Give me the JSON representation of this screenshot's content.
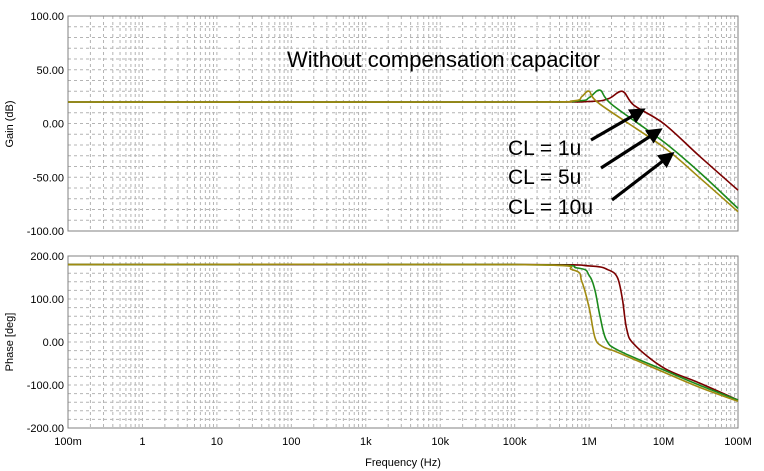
{
  "chart_data": [
    {
      "type": "line",
      "id": "gain",
      "xlabel": "Frequency (Hz)",
      "ylabel": "Gain (dB)",
      "xscale": "log",
      "xlim": [
        0.1,
        100000000
      ],
      "ylim": [
        -100,
        100
      ],
      "grid": true,
      "yticks": [
        {
          "v": 100,
          "label": "100.00"
        },
        {
          "v": 50,
          "label": "50.00"
        },
        {
          "v": 0,
          "label": "0.00"
        },
        {
          "v": -50,
          "label": "-50.00"
        },
        {
          "v": -100,
          "label": "-100.00"
        }
      ],
      "annotations": {
        "title": "Without compensation capacitor",
        "labels": [
          "CL = 1u",
          "CL = 5u",
          "CL = 10u"
        ]
      },
      "series": [
        {
          "color": "#7b0000",
          "x": [
            0.1,
            100000,
            1000000,
            1800000,
            2800000,
            4000000,
            10000000,
            30000000,
            100000000
          ],
          "y": [
            20,
            20,
            20.5,
            23,
            30,
            17,
            0,
            -30,
            -62
          ]
        },
        {
          "color": "#1c8a1c",
          "x": [
            0.1,
            100000,
            700000,
            1000000,
            1400000,
            2000000,
            10000000,
            30000000,
            100000000
          ],
          "y": [
            20,
            20,
            21,
            24,
            31,
            18,
            -17,
            -45,
            -79
          ]
        },
        {
          "color": "#a08a10",
          "x": [
            0.1,
            100000,
            600000,
            800000,
            1000000,
            1400000,
            10000000,
            30000000,
            100000000
          ],
          "y": [
            20,
            20,
            21,
            25,
            30,
            18,
            -22,
            -50,
            -82
          ]
        }
      ]
    },
    {
      "type": "line",
      "id": "phase",
      "xlabel": "Frequency (Hz)",
      "ylabel": "Phase [deg]",
      "xscale": "log",
      "xlim": [
        0.1,
        100000000
      ],
      "ylim": [
        -200,
        200
      ],
      "grid": true,
      "yticks": [
        {
          "v": 200,
          "label": "200.00"
        },
        {
          "v": 100,
          "label": "100.00"
        },
        {
          "v": 0,
          "label": "0.00"
        },
        {
          "v": -100,
          "label": "-100.00"
        },
        {
          "v": -200,
          "label": "-200.00"
        }
      ],
      "xticks": [
        {
          "v": 0.1,
          "label": "100m"
        },
        {
          "v": 1,
          "label": "1"
        },
        {
          "v": 10,
          "label": "10"
        },
        {
          "v": 100,
          "label": "100"
        },
        {
          "v": 1000,
          "label": "1k"
        },
        {
          "v": 10000,
          "label": "10k"
        },
        {
          "v": 100000,
          "label": "100k"
        },
        {
          "v": 1000000,
          "label": "1M"
        },
        {
          "v": 10000000,
          "label": "10M"
        },
        {
          "v": 100000000,
          "label": "100M"
        }
      ],
      "series": [
        {
          "color": "#7b0000",
          "x": [
            0.1,
            100000,
            1000000,
            1800000,
            2400000,
            2800000,
            3200000,
            4000000,
            10000000,
            30000000,
            100000000
          ],
          "y": [
            180,
            180,
            177,
            168,
            150,
            100,
            30,
            -5,
            -60,
            -95,
            -135
          ]
        },
        {
          "color": "#1c8a1c",
          "x": [
            0.1,
            100000,
            700000,
            1000000,
            1200000,
            1400000,
            1700000,
            2500000,
            10000000,
            30000000,
            100000000
          ],
          "y": [
            180,
            180,
            172,
            155,
            120,
            60,
            5,
            -20,
            -65,
            -100,
            -135
          ]
        },
        {
          "color": "#a08a10",
          "x": [
            0.1,
            100000,
            600000,
            800000,
            1000000,
            1200000,
            1500000,
            2500000,
            10000000,
            30000000,
            100000000
          ],
          "y": [
            180,
            180,
            168,
            140,
            80,
            10,
            -10,
            -25,
            -70,
            -105,
            -138
          ]
        }
      ]
    }
  ]
}
